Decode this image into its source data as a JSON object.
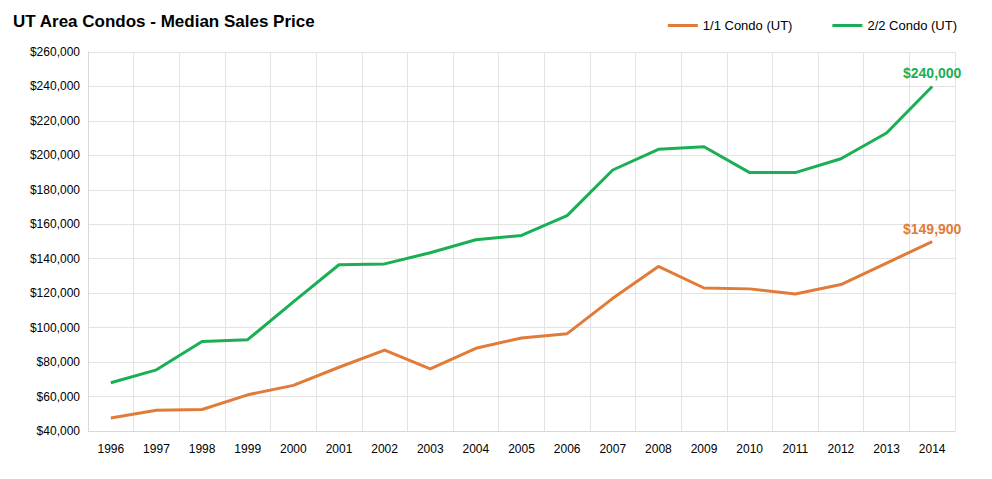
{
  "chart_data": {
    "type": "line",
    "title": "UT Area Condos - Median Sales Price",
    "categories": [
      "1996",
      "1997",
      "1998",
      "1999",
      "2000",
      "2001",
      "2002",
      "2003",
      "2004",
      "2005",
      "2006",
      "2007",
      "2008",
      "2009",
      "2010",
      "2011",
      "2012",
      "2013",
      "2014"
    ],
    "series": [
      {
        "name": "1/1 Condo (UT)",
        "color": "#e07b39",
        "values": [
          47500,
          52000,
          52500,
          61000,
          66500,
          77000,
          87000,
          76000,
          88000,
          94000,
          96500,
          117000,
          135500,
          123000,
          122500,
          119500,
          125000,
          137500,
          149900
        ]
      },
      {
        "name": "2/2 Condo (UT)",
        "color": "#1aaf54",
        "values": [
          68000,
          75500,
          92000,
          93000,
          115000,
          136500,
          137000,
          143500,
          151000,
          153500,
          165000,
          191500,
          203500,
          205000,
          190000,
          190000,
          198000,
          213000,
          240000
        ]
      }
    ],
    "annotations": [
      {
        "text": "$240,000",
        "x": "2014",
        "y": 240000
      },
      {
        "text": "$149,900",
        "x": "2014",
        "y": 149900
      }
    ],
    "ylim": [
      40000,
      260000
    ],
    "yticks": [
      {
        "value": 40000,
        "label": "$40,000"
      },
      {
        "value": 60000,
        "label": "$60,000"
      },
      {
        "value": 80000,
        "label": "$80,000"
      },
      {
        "value": 100000,
        "label": "$100,000"
      },
      {
        "value": 120000,
        "label": "$120,000"
      },
      {
        "value": 140000,
        "label": "$140,000"
      },
      {
        "value": 160000,
        "label": "$160,000"
      },
      {
        "value": 180000,
        "label": "$180,000"
      },
      {
        "value": 200000,
        "label": "$200,000"
      },
      {
        "value": 220000,
        "label": "$220,000"
      },
      {
        "value": 240000,
        "label": "$240,000"
      },
      {
        "value": 260000,
        "label": "$260,000"
      }
    ],
    "grid": true,
    "legend": "top-right"
  }
}
